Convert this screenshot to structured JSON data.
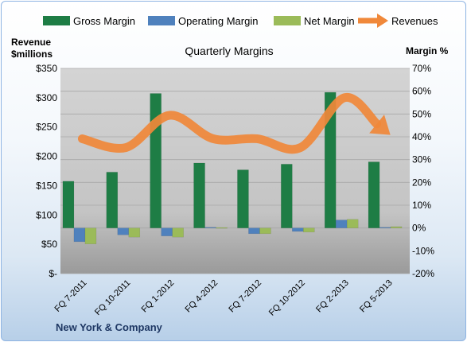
{
  "chart_data": {
    "type": "bar",
    "title": "Quarterly Margins",
    "footer": "New York & Company",
    "left_axis_title": [
      "Revenue",
      "$millions"
    ],
    "right_axis_title": "Margin %",
    "categories": [
      "FQ 7-2011",
      "FQ 10-2011",
      "FQ 1-2012",
      "FQ 4-2012",
      "FQ 7-2012",
      "FQ 10-2012",
      "FQ 2-2013",
      "FQ 5-2013"
    ],
    "left_axis": {
      "ylim": [
        0,
        350
      ],
      "ticks": [
        0,
        50,
        100,
        150,
        200,
        250,
        300,
        350
      ],
      "tick_labels": [
        "$-",
        "$50",
        "$100",
        "$150",
        "$200",
        "$250",
        "$300",
        "$350"
      ]
    },
    "right_axis": {
      "ylim": [
        -20,
        70
      ],
      "ticks": [
        -20,
        -10,
        0,
        10,
        20,
        30,
        40,
        50,
        60,
        70
      ],
      "tick_labels": [
        "-20%",
        "-10%",
        "0%",
        "10%",
        "20%",
        "30%",
        "40%",
        "50%",
        "60%",
        "70%"
      ]
    },
    "series": [
      {
        "name": "Gross Margin",
        "kind": "bar",
        "axis": "right",
        "color": "#1e7d45",
        "values": [
          20.5,
          24.5,
          59,
          28.5,
          25.5,
          28,
          59.5,
          29
        ]
      },
      {
        "name": "Operating Margin",
        "kind": "bar",
        "axis": "right",
        "color": "#4f81bd",
        "values": [
          -6,
          -3,
          -3.5,
          0.3,
          -2.5,
          -1.5,
          3.5,
          0.3
        ]
      },
      {
        "name": "Net Margin",
        "kind": "bar",
        "axis": "right",
        "color": "#9bbb59",
        "values": [
          -7,
          -4,
          -4,
          0.2,
          -2.5,
          -1.8,
          3.8,
          0.6
        ]
      },
      {
        "name": "Revenues",
        "kind": "line",
        "axis": "left",
        "color": "#f0883a",
        "values": [
          230,
          215,
          270,
          230,
          230,
          215,
          300,
          240
        ]
      }
    ],
    "legend": {
      "position": "top"
    },
    "grid": true,
    "plot_background": "#c8c8c8"
  }
}
